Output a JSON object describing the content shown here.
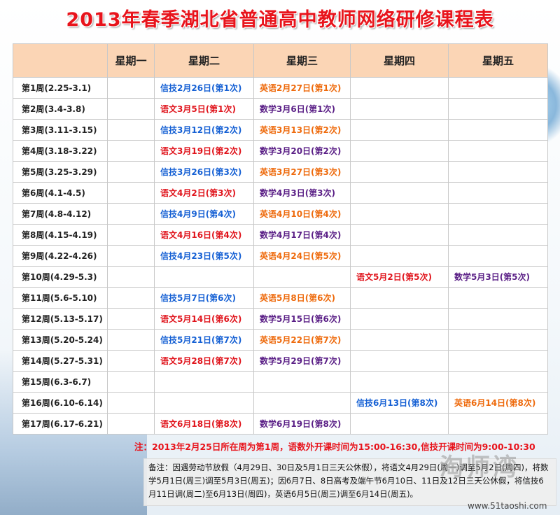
{
  "header": {
    "title": "2013年春季湖北省普通高中教师网络研修课程表"
  },
  "table": {
    "columns": [
      "星期一",
      "星期二",
      "星期三",
      "星期四",
      "星期五"
    ],
    "rows": [
      {
        "week": "第1周(2.25-3.1)",
        "cells": [
          null,
          {
            "text": "信技2月26日(第1次)",
            "color": "#1560d4"
          },
          {
            "text": "英语2月27日(第1次)",
            "color": "#ee6a0c"
          },
          null,
          null
        ]
      },
      {
        "week": "第2周(3.4-3.8)",
        "cells": [
          null,
          {
            "text": "语文3月5日(第1次)",
            "color": "#e0141c"
          },
          {
            "text": "数学3月6日(第1次)",
            "color": "#5a1f86"
          },
          null,
          null
        ]
      },
      {
        "week": "第3周(3.11-3.15)",
        "cells": [
          null,
          {
            "text": "信技3月12日(第2次)",
            "color": "#1560d4"
          },
          {
            "text": "英语3月13日(第2次)",
            "color": "#ee6a0c"
          },
          null,
          null
        ]
      },
      {
        "week": "第4周(3.18-3.22)",
        "cells": [
          null,
          {
            "text": "语文3月19日(第2次)",
            "color": "#e0141c"
          },
          {
            "text": "数学3月20日(第2次)",
            "color": "#5a1f86"
          },
          null,
          null
        ]
      },
      {
        "week": "第5周(3.25-3.29)",
        "cells": [
          null,
          {
            "text": "信技3月26日(第3次)",
            "color": "#1560d4"
          },
          {
            "text": "英语3月27日(第3次)",
            "color": "#ee6a0c"
          },
          null,
          null
        ]
      },
      {
        "week": "第6周(4.1-4.5)",
        "cells": [
          null,
          {
            "text": "语文4月2日(第3次)",
            "color": "#e0141c"
          },
          {
            "text": "数学4月3日(第3次)",
            "color": "#5a1f86"
          },
          null,
          null
        ]
      },
      {
        "week": "第7周(4.8-4.12)",
        "cells": [
          null,
          {
            "text": "信技4月9日(第4次)",
            "color": "#1560d4"
          },
          {
            "text": "英语4月10日(第4次)",
            "color": "#ee6a0c"
          },
          null,
          null
        ]
      },
      {
        "week": "第8周(4.15-4.19)",
        "cells": [
          null,
          {
            "text": "语文4月16日(第4次)",
            "color": "#e0141c"
          },
          {
            "text": "数学4月17日(第4次)",
            "color": "#5a1f86"
          },
          null,
          null
        ]
      },
      {
        "week": "第9周(4.22-4.26)",
        "cells": [
          null,
          {
            "text": "信技4月23日(第5次)",
            "color": "#1560d4"
          },
          {
            "text": "英语4月24日(第5次)",
            "color": "#ee6a0c"
          },
          null,
          null
        ]
      },
      {
        "week": "第10周(4.29-5.3)",
        "cells": [
          null,
          null,
          null,
          {
            "text": "语文5月2日(第5次)",
            "color": "#e0141c"
          },
          {
            "text": "数学5月3日(第5次)",
            "color": "#5a1f86"
          }
        ]
      },
      {
        "week": "第11周(5.6-5.10)",
        "cells": [
          null,
          {
            "text": "信技5月7日(第6次)",
            "color": "#1560d4"
          },
          {
            "text": "英语5月8日(第6次)",
            "color": "#ee6a0c"
          },
          null,
          null
        ]
      },
      {
        "week": "第12周(5.13-5.17)",
        "cells": [
          null,
          {
            "text": "语文5月14日(第6次)",
            "color": "#e0141c"
          },
          {
            "text": "数学5月15日(第6次)",
            "color": "#5a1f86"
          },
          null,
          null
        ]
      },
      {
        "week": "第13周(5.20-5.24)",
        "cells": [
          null,
          {
            "text": "信技5月21日(第7次)",
            "color": "#1560d4"
          },
          {
            "text": "英语5月22日(第7次)",
            "color": "#ee6a0c"
          },
          null,
          null
        ]
      },
      {
        "week": "第14周(5.27-5.31)",
        "cells": [
          null,
          {
            "text": "语文5月28日(第7次)",
            "color": "#e0141c"
          },
          {
            "text": "数学5月29日(第7次)",
            "color": "#5a1f86"
          },
          null,
          null
        ]
      },
      {
        "week": "第15周(6.3-6.7)",
        "cells": [
          null,
          null,
          null,
          null,
          null
        ]
      },
      {
        "week": "第16周(6.10-6.14)",
        "cells": [
          null,
          null,
          null,
          {
            "text": "信技6月13日(第8次)",
            "color": "#1560d4"
          },
          {
            "text": "英语6月14日(第8次)",
            "color": "#ee6a0c"
          }
        ]
      },
      {
        "week": "第17周(6.17-6.21)",
        "cells": [
          null,
          {
            "text": "语文6月18日(第8次)",
            "color": "#e0141c"
          },
          {
            "text": "数学6月19日(第8次)",
            "color": "#5a1f86"
          },
          null,
          null
        ]
      }
    ]
  },
  "footer": {
    "note": "注：2013年2月25日所在周为第1周，语数外开课时间为15:00-16:30,信技开课时间为9:00-10:30",
    "remark": "备注：因遇劳动节放假（4月29日、30日及5月1日三天公休假），将语文4月29日(周一)调至5月2日(周四)，将数学5月1日(周三)调至5月3日(周五)；因6月7日、8日高考及端午节6月10日、11日及12日三天公休假，将信技6月11日调(周二)至6月13日(周四)，英语6月5日(周三)调至6月14日(周五)。",
    "watermark": "淘师湾",
    "url": "www.51taoshi.com"
  }
}
